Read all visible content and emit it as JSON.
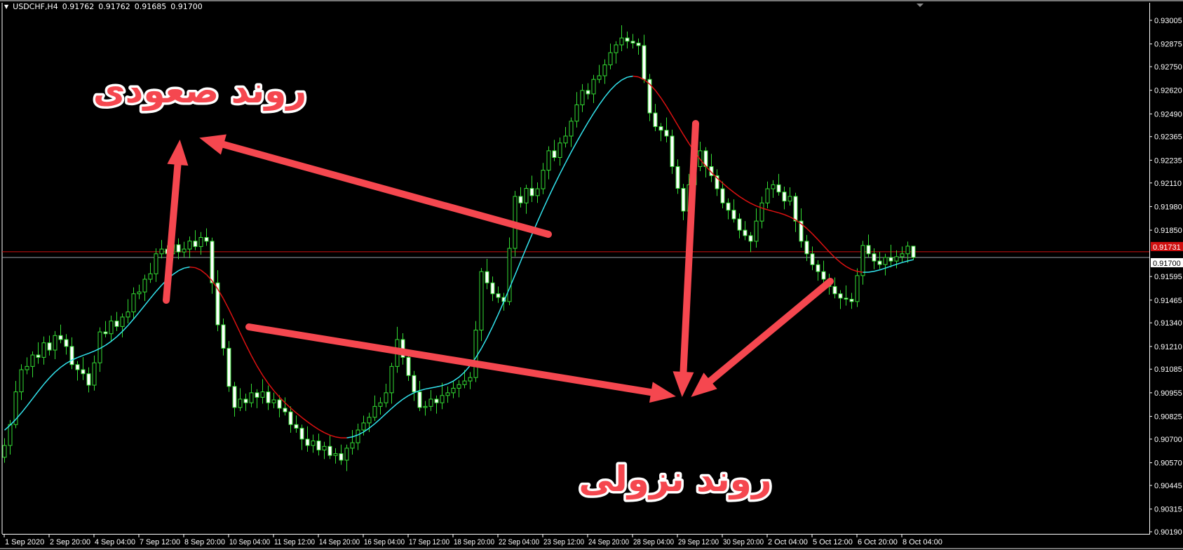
{
  "header": {
    "menu_icon": "triangle-down-icon",
    "symbol_timeframe": "USDCHF,H4",
    "open": "0.91762",
    "high": "0.91762",
    "low": "0.91685",
    "close": "0.91700"
  },
  "annotations": {
    "uptrend_label": "روند صعودی",
    "downtrend_label": "روند نزولی",
    "arrow_color": "#f5474f"
  },
  "price_lines": {
    "ask": {
      "value": 0.91731,
      "label": "0.91731",
      "color": "#d01010"
    },
    "bid": {
      "value": 0.917,
      "label": "0.91700",
      "color": "#9aa0a8"
    }
  },
  "colors": {
    "background": "#000000",
    "candle_outline": "#33dd33",
    "bear_body": "#ffffff",
    "bull_body": "#000000",
    "ma_up": "#33e6f0",
    "ma_down": "#dd1111",
    "axis": "#ffffff"
  },
  "chart_data": {
    "type": "candlestick",
    "symbol": "USDCHF",
    "timeframe": "H4",
    "ylim": [
      0.9019,
      0.93005
    ],
    "grid": false,
    "y_ticks": [
      "0.93005",
      "0.92875",
      "0.92750",
      "0.92620",
      "0.92490",
      "0.92365",
      "0.92235",
      "0.92110",
      "0.91980",
      "0.91850",
      "0.91595",
      "0.91465",
      "0.91340",
      "0.91210",
      "0.91085",
      "0.90955",
      "0.90825",
      "0.90700",
      "0.90570",
      "0.90445",
      "0.90315",
      "0.90190"
    ],
    "x_ticks": [
      "1 Sep 2020",
      "2 Sep 20:00",
      "4 Sep 04:00",
      "7 Sep 12:00",
      "8 Sep 20:00",
      "10 Sep 04:00",
      "11 Sep 12:00",
      "14 Sep 20:00",
      "16 Sep 04:00",
      "17 Sep 12:00",
      "18 Sep 20:00",
      "22 Sep 04:00",
      "23 Sep 12:00",
      "24 Sep 20:00",
      "28 Sep 04:00",
      "29 Sep 12:00",
      "30 Sep 20:00",
      "2 Oct 04:00",
      "5 Oct 12:00",
      "6 Oct 20:00",
      "8 Oct 04:00"
    ],
    "candles_ohlc": [
      [
        0.906,
        0.90705,
        0.9057,
        0.90665
      ],
      [
        0.90665,
        0.90805,
        0.90615,
        0.9078
      ],
      [
        0.9078,
        0.9102,
        0.9076,
        0.9096
      ],
      [
        0.9096,
        0.91112,
        0.90915,
        0.91082
      ],
      [
        0.91082,
        0.9115,
        0.91057,
        0.911
      ],
      [
        0.911,
        0.91183,
        0.9104,
        0.91163
      ],
      [
        0.91163,
        0.91233,
        0.91115,
        0.9115
      ],
      [
        0.9115,
        0.91265,
        0.9111,
        0.9123
      ],
      [
        0.9123,
        0.9127,
        0.9116,
        0.9119
      ],
      [
        0.9119,
        0.91295,
        0.9114,
        0.9127
      ],
      [
        0.9127,
        0.9133,
        0.91228,
        0.91248
      ],
      [
        0.91248,
        0.91278,
        0.91165,
        0.9121
      ],
      [
        0.9121,
        0.9126,
        0.91085,
        0.9111
      ],
      [
        0.9111,
        0.9113,
        0.91022,
        0.91082
      ],
      [
        0.91082,
        0.91152,
        0.91025,
        0.9106
      ],
      [
        0.9106,
        0.91095,
        0.90957,
        0.90997
      ],
      [
        0.90997,
        0.9116,
        0.90967,
        0.9112
      ],
      [
        0.9112,
        0.91315,
        0.9107,
        0.9129
      ],
      [
        0.9129,
        0.9135,
        0.9126,
        0.9128
      ],
      [
        0.9128,
        0.9138,
        0.91235,
        0.9135
      ],
      [
        0.9135,
        0.914,
        0.91295,
        0.9132
      ],
      [
        0.9132,
        0.91392,
        0.9126,
        0.91372
      ],
      [
        0.91372,
        0.9147,
        0.91337,
        0.914
      ],
      [
        0.914,
        0.91535,
        0.9136,
        0.915
      ],
      [
        0.915,
        0.9155,
        0.9147,
        0.9151
      ],
      [
        0.9151,
        0.91605,
        0.9146,
        0.9158
      ],
      [
        0.9158,
        0.9167,
        0.9156,
        0.9161
      ],
      [
        0.9161,
        0.9175,
        0.91565,
        0.9172
      ],
      [
        0.9172,
        0.91796,
        0.91695,
        0.91746
      ],
      [
        0.91746,
        0.91766,
        0.9166,
        0.9172
      ],
      [
        0.9172,
        0.9184,
        0.91685,
        0.9177
      ],
      [
        0.9177,
        0.91805,
        0.9169,
        0.9173
      ],
      [
        0.9173,
        0.91786,
        0.917,
        0.91746
      ],
      [
        0.91746,
        0.91815,
        0.91696,
        0.9179
      ],
      [
        0.9179,
        0.9185,
        0.9174,
        0.9176
      ],
      [
        0.9176,
        0.9184,
        0.91715,
        0.9181
      ],
      [
        0.9181,
        0.9186,
        0.91764,
        0.91789
      ],
      [
        0.91789,
        0.91809,
        0.915,
        0.9156
      ],
      [
        0.9156,
        0.9163,
        0.91294,
        0.91329
      ],
      [
        0.91329,
        0.91364,
        0.9116,
        0.912
      ],
      [
        0.912,
        0.9124,
        0.9096,
        0.9099
      ],
      [
        0.9099,
        0.91015,
        0.90824,
        0.90874
      ],
      [
        0.90874,
        0.9098,
        0.90854,
        0.9092
      ],
      [
        0.9092,
        0.9095,
        0.90855,
        0.909
      ],
      [
        0.909,
        0.91005,
        0.90875,
        0.90955
      ],
      [
        0.90955,
        0.90975,
        0.9087,
        0.9093
      ],
      [
        0.9093,
        0.9103,
        0.90895,
        0.9096
      ],
      [
        0.9096,
        0.90995,
        0.9086,
        0.909
      ],
      [
        0.909,
        0.90956,
        0.9087,
        0.90916
      ],
      [
        0.90916,
        0.90941,
        0.9082,
        0.9087
      ],
      [
        0.9087,
        0.9093,
        0.9083,
        0.9085
      ],
      [
        0.9085,
        0.9088,
        0.90735,
        0.9078
      ],
      [
        0.9078,
        0.9083,
        0.90735,
        0.9076
      ],
      [
        0.9076,
        0.9078,
        0.9064,
        0.907
      ],
      [
        0.907,
        0.9077,
        0.9063,
        0.90665
      ],
      [
        0.90665,
        0.90725,
        0.90625,
        0.9069
      ],
      [
        0.9069,
        0.9073,
        0.9061,
        0.9064
      ],
      [
        0.9064,
        0.90685,
        0.9059,
        0.9066
      ],
      [
        0.9066,
        0.9072,
        0.9059,
        0.9061
      ],
      [
        0.9061,
        0.9065,
        0.90565,
        0.9062
      ],
      [
        0.9062,
        0.9067,
        0.90559,
        0.90584
      ],
      [
        0.90584,
        0.9067,
        0.90524,
        0.9065
      ],
      [
        0.9065,
        0.9075,
        0.90615,
        0.9068
      ],
      [
        0.9068,
        0.90785,
        0.9064,
        0.9075
      ],
      [
        0.9075,
        0.90829,
        0.9072,
        0.90789
      ],
      [
        0.90789,
        0.90845,
        0.90739,
        0.9082
      ],
      [
        0.9082,
        0.9094,
        0.908,
        0.9088
      ],
      [
        0.9088,
        0.9093,
        0.90835,
        0.909
      ],
      [
        0.909,
        0.91005,
        0.90875,
        0.90955
      ],
      [
        0.90955,
        0.9112,
        0.90895,
        0.911
      ],
      [
        0.911,
        0.91318,
        0.91065,
        0.91248
      ],
      [
        0.91248,
        0.91283,
        0.9111,
        0.9115
      ],
      [
        0.9115,
        0.9119,
        0.9102,
        0.9105
      ],
      [
        0.9105,
        0.91075,
        0.9091,
        0.9096
      ],
      [
        0.9096,
        0.9102,
        0.90854,
        0.90874
      ],
      [
        0.90874,
        0.9091,
        0.90829,
        0.9088
      ],
      [
        0.9088,
        0.9097,
        0.90855,
        0.9092
      ],
      [
        0.9092,
        0.9094,
        0.9084,
        0.909
      ],
      [
        0.909,
        0.9101,
        0.90865,
        0.9094
      ],
      [
        0.9094,
        0.9099,
        0.909,
        0.90955
      ],
      [
        0.90955,
        0.9102,
        0.90925,
        0.9098
      ],
      [
        0.9098,
        0.91025,
        0.9093,
        0.91
      ],
      [
        0.91,
        0.9108,
        0.9098,
        0.9102
      ],
      [
        0.9102,
        0.91069,
        0.90975,
        0.91039
      ],
      [
        0.91039,
        0.9135,
        0.91014,
        0.913
      ],
      [
        0.913,
        0.91642,
        0.9124,
        0.91622
      ],
      [
        0.91622,
        0.91692,
        0.91525,
        0.9156
      ],
      [
        0.9156,
        0.91595,
        0.9146,
        0.915
      ],
      [
        0.915,
        0.9154,
        0.9145,
        0.9148
      ],
      [
        0.9148,
        0.91505,
        0.91407,
        0.91457
      ],
      [
        0.91457,
        0.9181,
        0.91437,
        0.9175
      ],
      [
        0.9175,
        0.92066,
        0.91705,
        0.92036
      ],
      [
        0.92036,
        0.92086,
        0.91975,
        0.92
      ],
      [
        0.92,
        0.921,
        0.9194,
        0.9208
      ],
      [
        0.9208,
        0.9215,
        0.92005,
        0.9204
      ],
      [
        0.9204,
        0.92113,
        0.92,
        0.92078
      ],
      [
        0.92078,
        0.9222,
        0.92048,
        0.9218
      ],
      [
        0.9218,
        0.92312,
        0.9213,
        0.92287
      ],
      [
        0.92287,
        0.92347,
        0.9223,
        0.9225
      ],
      [
        0.9225,
        0.9236,
        0.92205,
        0.9233
      ],
      [
        0.9233,
        0.92418,
        0.92305,
        0.92368
      ],
      [
        0.92368,
        0.9247,
        0.92308,
        0.9245
      ],
      [
        0.9245,
        0.9261,
        0.92415,
        0.9254
      ],
      [
        0.9254,
        0.92654,
        0.925,
        0.92619
      ],
      [
        0.92619,
        0.92659,
        0.9257,
        0.926
      ],
      [
        0.926,
        0.92705,
        0.9255,
        0.9268
      ],
      [
        0.9268,
        0.9276,
        0.9266,
        0.927
      ],
      [
        0.927,
        0.9279,
        0.92655,
        0.9276
      ],
      [
        0.9276,
        0.92877,
        0.92735,
        0.92827
      ],
      [
        0.92827,
        0.9289,
        0.92767,
        0.9287
      ],
      [
        0.9287,
        0.92978,
        0.92835,
        0.92908
      ],
      [
        0.92908,
        0.92943,
        0.9285,
        0.9289
      ],
      [
        0.9289,
        0.9293,
        0.9285,
        0.9288
      ],
      [
        0.9288,
        0.92905,
        0.92816,
        0.92866
      ],
      [
        0.92866,
        0.92926,
        0.9266,
        0.9268
      ],
      [
        0.9268,
        0.9271,
        0.9245,
        0.92495
      ],
      [
        0.92495,
        0.92545,
        0.92395,
        0.9242
      ],
      [
        0.9242,
        0.9244,
        0.9234,
        0.924
      ],
      [
        0.924,
        0.9247,
        0.92333,
        0.92368
      ],
      [
        0.92368,
        0.92403,
        0.9216,
        0.922
      ],
      [
        0.922,
        0.9224,
        0.9205,
        0.9208
      ],
      [
        0.9208,
        0.92105,
        0.91905,
        0.91955
      ],
      [
        0.91955,
        0.9216,
        0.91935,
        0.921
      ],
      [
        0.921,
        0.9223,
        0.92055,
        0.922
      ],
      [
        0.922,
        0.92337,
        0.92175,
        0.92287
      ],
      [
        0.92287,
        0.92307,
        0.9214,
        0.922
      ],
      [
        0.922,
        0.9227,
        0.92115,
        0.9215
      ],
      [
        0.9215,
        0.92185,
        0.92038,
        0.92078
      ],
      [
        0.92078,
        0.92118,
        0.9197,
        0.92
      ],
      [
        0.92,
        0.92025,
        0.9191,
        0.9196
      ],
      [
        0.9196,
        0.9202,
        0.91892,
        0.91912
      ],
      [
        0.91912,
        0.91942,
        0.91805,
        0.9185
      ],
      [
        0.9185,
        0.919,
        0.91795,
        0.9182
      ],
      [
        0.9182,
        0.9184,
        0.91729,
        0.91789
      ],
      [
        0.91789,
        0.9197,
        0.91754,
        0.919
      ],
      [
        0.919,
        0.92035,
        0.9186,
        0.92
      ],
      [
        0.92,
        0.92118,
        0.9197,
        0.92078
      ],
      [
        0.92078,
        0.92125,
        0.92028,
        0.921
      ],
      [
        0.921,
        0.9216,
        0.9204,
        0.9206
      ],
      [
        0.9206,
        0.9209,
        0.91965,
        0.9201
      ],
      [
        0.9201,
        0.92086,
        0.91985,
        0.92036
      ],
      [
        0.92036,
        0.92056,
        0.9184,
        0.919
      ],
      [
        0.919,
        0.9197,
        0.91754,
        0.91789
      ],
      [
        0.91789,
        0.91824,
        0.9168,
        0.9172
      ],
      [
        0.9172,
        0.9176,
        0.9163,
        0.9166
      ],
      [
        0.9166,
        0.91685,
        0.91572,
        0.91622
      ],
      [
        0.91622,
        0.91682,
        0.9156,
        0.9158
      ],
      [
        0.9158,
        0.9161,
        0.91495,
        0.9154
      ],
      [
        0.9154,
        0.9159,
        0.91475,
        0.915
      ],
      [
        0.915,
        0.9152,
        0.91416,
        0.91476
      ],
      [
        0.91476,
        0.91546,
        0.91435,
        0.9147
      ],
      [
        0.9147,
        0.91505,
        0.91417,
        0.91457
      ],
      [
        0.91457,
        0.9164,
        0.91427,
        0.916
      ],
      [
        0.916,
        0.91791,
        0.9155,
        0.91766
      ],
      [
        0.91766,
        0.91826,
        0.917,
        0.9172
      ],
      [
        0.9172,
        0.9175,
        0.91635,
        0.9168
      ],
      [
        0.9168,
        0.9173,
        0.91636,
        0.91661
      ],
      [
        0.91661,
        0.9172,
        0.91601,
        0.917
      ],
      [
        0.917,
        0.9177,
        0.91645,
        0.9168
      ],
      [
        0.9168,
        0.91739,
        0.9164,
        0.91704
      ],
      [
        0.91704,
        0.9176,
        0.91674,
        0.9172
      ],
      [
        0.9172,
        0.91787,
        0.9167,
        0.91762
      ],
      [
        0.91762,
        0.91762,
        0.91685,
        0.917
      ]
    ]
  }
}
